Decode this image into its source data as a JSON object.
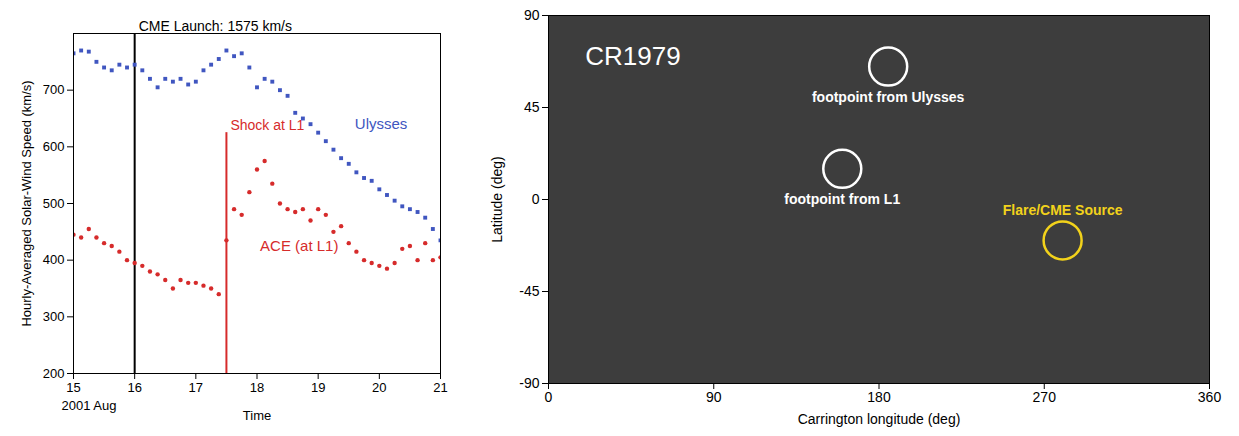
{
  "chart_data": [
    {
      "type": "scatter",
      "xlabel": "Time",
      "ylabel": "Hourly-Averaged Solar-Wind Speed (km/s)",
      "x": [
        15,
        15.125,
        15.25,
        15.375,
        15.5,
        15.625,
        15.75,
        15.875,
        16,
        16.125,
        16.25,
        16.375,
        16.5,
        16.625,
        16.75,
        16.875,
        17,
        17.125,
        17.25,
        17.375,
        17.5,
        17.625,
        17.75,
        17.875,
        18,
        18.125,
        18.25,
        18.375,
        18.5,
        18.625,
        18.75,
        18.875,
        19,
        19.125,
        19.25,
        19.375,
        19.5,
        19.625,
        19.75,
        19.875,
        20,
        20.125,
        20.25,
        20.375,
        20.5,
        20.625,
        20.75,
        20.875,
        21
      ],
      "series": [
        {
          "name": "Ulysses",
          "color": "#4056c0",
          "marker": "square",
          "values": [
            765,
            770,
            768,
            750,
            740,
            735,
            745,
            740,
            745,
            735,
            720,
            705,
            720,
            715,
            720,
            710,
            715,
            735,
            745,
            755,
            770,
            760,
            765,
            740,
            705,
            720,
            715,
            700,
            690,
            660,
            650,
            640,
            625,
            610,
            595,
            580,
            570,
            555,
            545,
            540,
            525,
            515,
            505,
            495,
            490,
            485,
            475,
            455,
            435
          ]
        },
        {
          "name": "ACE (at L1)",
          "color": "#d62b2b",
          "marker": "circle",
          "values": [
            445,
            440,
            455,
            440,
            430,
            425,
            415,
            400,
            395,
            390,
            380,
            375,
            365,
            350,
            365,
            360,
            360,
            355,
            350,
            340,
            435,
            490,
            480,
            520,
            560,
            575,
            535,
            500,
            490,
            485,
            490,
            470,
            490,
            480,
            450,
            460,
            430,
            415,
            400,
            395,
            390,
            385,
            395,
            420,
            425,
            400,
            430,
            400,
            405
          ]
        }
      ],
      "annotations": [
        {
          "text": "CME Launch: 1575 km/s",
          "x": 16,
          "y": 800,
          "color": "#000000"
        },
        {
          "text": "Shock at L1",
          "x": 17.5,
          "y": 625,
          "color": "#d62b2b"
        },
        {
          "text": "Ulysses",
          "x": 19.6,
          "y": 640
        },
        {
          "text": "ACE (at L1)",
          "x": 18.05,
          "y": 425
        },
        {
          "text": "2001 Aug",
          "x": 15
        }
      ],
      "xlim": [
        15,
        21
      ],
      "xticks": [
        15,
        16,
        17,
        18,
        19,
        20,
        21
      ],
      "ylim": [
        200,
        800
      ],
      "yticks": [
        200,
        300,
        400,
        500,
        600,
        700
      ]
    },
    {
      "type": "map",
      "xlabel": "Carrington longitude (deg)",
      "ylabel": "Latitude (deg)",
      "annotations": [
        {
          "text": "CR1979",
          "x": 20,
          "y": 70
        }
      ],
      "x": [
        185,
        160,
        280
      ],
      "values": [
        65,
        15,
        -20
      ],
      "labels": [
        "footpoint from Ulysses",
        "footpoint from L1",
        "Flare/CME Source"
      ],
      "colors": [
        "#ffffff",
        "#ffffff",
        "#f2d21b"
      ],
      "marker": "circle",
      "xlim": [
        0,
        360
      ],
      "xticks": [
        0,
        90,
        180,
        270,
        360
      ],
      "ylim": [
        -90,
        90
      ],
      "yticks": [
        -90,
        -45,
        0,
        45,
        90
      ]
    }
  ]
}
